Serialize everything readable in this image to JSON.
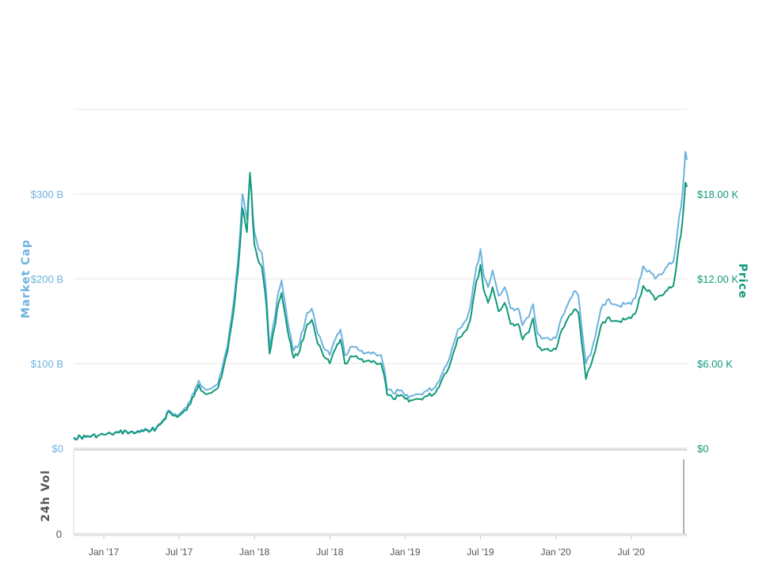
{
  "chart_data": {
    "type": "line",
    "y_left": {
      "label": "Market Cap",
      "ticks": [
        "$0",
        "$100 B",
        "$200 B",
        "$300 B"
      ],
      "tick_values": [
        0,
        100,
        200,
        300
      ],
      "unit": "B USD",
      "ylim": [
        0,
        400
      ]
    },
    "y_right": {
      "label": "Price",
      "ticks": [
        "$0",
        "$6.00 K",
        "$12.00 K",
        "$18.00 K"
      ],
      "tick_values": [
        0,
        6000,
        12000,
        18000
      ],
      "ylim": [
        0,
        24000
      ]
    },
    "volume_panel": {
      "label": "24h Vol",
      "ticks": [
        "0"
      ]
    },
    "x_ticks": [
      {
        "label": "Jan '17",
        "t": 2017.0
      },
      {
        "label": "Jul '17",
        "t": 2017.5
      },
      {
        "label": "Jan '18",
        "t": 2018.0
      },
      {
        "label": "Jul '18",
        "t": 2018.5
      },
      {
        "label": "Jan '19",
        "t": 2019.0
      },
      {
        "label": "Jul '19",
        "t": 2019.5
      },
      {
        "label": "Jan '20",
        "t": 2020.0
      },
      {
        "label": "Jul '20",
        "t": 2020.5
      }
    ],
    "xlim": [
      2016.8,
      2020.87
    ],
    "grid": true,
    "colors": {
      "market_cap": "#6db3df",
      "price": "#11997a",
      "grid": "#e6e6e6"
    },
    "series": [
      {
        "name": "Market Cap",
        "axis": "left",
        "points": [
          [
            2016.8,
            12
          ],
          [
            2016.88,
            13
          ],
          [
            2016.96,
            15
          ],
          [
            2017.0,
            16
          ],
          [
            2017.05,
            17
          ],
          [
            2017.1,
            19
          ],
          [
            2017.15,
            20
          ],
          [
            2017.2,
            18
          ],
          [
            2017.25,
            22
          ],
          [
            2017.3,
            20
          ],
          [
            2017.35,
            25
          ],
          [
            2017.4,
            35
          ],
          [
            2017.43,
            45
          ],
          [
            2017.46,
            40
          ],
          [
            2017.5,
            40
          ],
          [
            2017.55,
            48
          ],
          [
            2017.6,
            66
          ],
          [
            2017.63,
            80
          ],
          [
            2017.66,
            72
          ],
          [
            2017.7,
            70
          ],
          [
            2017.75,
            75
          ],
          [
            2017.78,
            90
          ],
          [
            2017.82,
            120
          ],
          [
            2017.86,
            170
          ],
          [
            2017.89,
            220
          ],
          [
            2017.92,
            300
          ],
          [
            2017.95,
            270
          ],
          [
            2017.97,
            322
          ],
          [
            2018.0,
            255
          ],
          [
            2018.02,
            240
          ],
          [
            2018.05,
            230
          ],
          [
            2018.08,
            180
          ],
          [
            2018.1,
            120
          ],
          [
            2018.13,
            150
          ],
          [
            2018.16,
            185
          ],
          [
            2018.18,
            198
          ],
          [
            2018.2,
            175
          ],
          [
            2018.23,
            140
          ],
          [
            2018.26,
            115
          ],
          [
            2018.3,
            125
          ],
          [
            2018.35,
            160
          ],
          [
            2018.38,
            165
          ],
          [
            2018.42,
            135
          ],
          [
            2018.46,
            118
          ],
          [
            2018.5,
            110
          ],
          [
            2018.54,
            130
          ],
          [
            2018.57,
            140
          ],
          [
            2018.6,
            110
          ],
          [
            2018.65,
            120
          ],
          [
            2018.7,
            115
          ],
          [
            2018.75,
            113
          ],
          [
            2018.8,
            112
          ],
          [
            2018.84,
            110
          ],
          [
            2018.86,
            95
          ],
          [
            2018.88,
            70
          ],
          [
            2018.92,
            65
          ],
          [
            2018.96,
            68
          ],
          [
            2019.0,
            62
          ],
          [
            2019.05,
            62
          ],
          [
            2019.1,
            64
          ],
          [
            2019.15,
            68
          ],
          [
            2019.2,
            72
          ],
          [
            2019.25,
            90
          ],
          [
            2019.3,
            110
          ],
          [
            2019.35,
            140
          ],
          [
            2019.4,
            150
          ],
          [
            2019.43,
            165
          ],
          [
            2019.46,
            200
          ],
          [
            2019.5,
            235
          ],
          [
            2019.52,
            205
          ],
          [
            2019.55,
            190
          ],
          [
            2019.58,
            210
          ],
          [
            2019.62,
            180
          ],
          [
            2019.66,
            190
          ],
          [
            2019.7,
            165
          ],
          [
            2019.75,
            165
          ],
          [
            2019.78,
            145
          ],
          [
            2019.82,
            155
          ],
          [
            2019.85,
            170
          ],
          [
            2019.88,
            135
          ],
          [
            2019.92,
            130
          ],
          [
            2019.96,
            128
          ],
          [
            2020.0,
            130
          ],
          [
            2020.04,
            155
          ],
          [
            2020.08,
            170
          ],
          [
            2020.12,
            185
          ],
          [
            2020.15,
            180
          ],
          [
            2020.18,
            130
          ],
          [
            2020.2,
            100
          ],
          [
            2020.23,
            110
          ],
          [
            2020.26,
            130
          ],
          [
            2020.3,
            165
          ],
          [
            2020.34,
            175
          ],
          [
            2020.38,
            170
          ],
          [
            2020.42,
            168
          ],
          [
            2020.46,
            170
          ],
          [
            2020.5,
            170
          ],
          [
            2020.54,
            185
          ],
          [
            2020.58,
            215
          ],
          [
            2020.62,
            210
          ],
          [
            2020.66,
            200
          ],
          [
            2020.7,
            205
          ],
          [
            2020.74,
            215
          ],
          [
            2020.78,
            220
          ],
          [
            2020.81,
            260
          ],
          [
            2020.84,
            300
          ],
          [
            2020.86,
            350
          ],
          [
            2020.87,
            340
          ]
        ]
      },
      {
        "name": "Price",
        "axis": "right",
        "points": [
          [
            2016.8,
            770
          ],
          [
            2016.88,
            820
          ],
          [
            2016.96,
            900
          ],
          [
            2017.0,
            960
          ],
          [
            2017.05,
            1000
          ],
          [
            2017.1,
            1100
          ],
          [
            2017.15,
            1180
          ],
          [
            2017.2,
            1050
          ],
          [
            2017.25,
            1250
          ],
          [
            2017.3,
            1150
          ],
          [
            2017.35,
            1450
          ],
          [
            2017.4,
            2000
          ],
          [
            2017.43,
            2600
          ],
          [
            2017.46,
            2300
          ],
          [
            2017.5,
            2300
          ],
          [
            2017.55,
            2700
          ],
          [
            2017.6,
            3700
          ],
          [
            2017.63,
            4500
          ],
          [
            2017.66,
            4000
          ],
          [
            2017.7,
            3900
          ],
          [
            2017.75,
            4200
          ],
          [
            2017.78,
            5000
          ],
          [
            2017.82,
            6800
          ],
          [
            2017.86,
            9600
          ],
          [
            2017.89,
            12500
          ],
          [
            2017.92,
            17000
          ],
          [
            2017.95,
            15300
          ],
          [
            2017.97,
            19500
          ],
          [
            2018.0,
            14400
          ],
          [
            2018.02,
            13500
          ],
          [
            2018.05,
            12800
          ],
          [
            2018.08,
            10000
          ],
          [
            2018.1,
            6700
          ],
          [
            2018.13,
            8400
          ],
          [
            2018.16,
            10300
          ],
          [
            2018.18,
            11000
          ],
          [
            2018.2,
            9700
          ],
          [
            2018.23,
            7800
          ],
          [
            2018.26,
            6400
          ],
          [
            2018.3,
            6900
          ],
          [
            2018.35,
            8800
          ],
          [
            2018.38,
            9100
          ],
          [
            2018.42,
            7400
          ],
          [
            2018.46,
            6500
          ],
          [
            2018.5,
            6000
          ],
          [
            2018.54,
            7100
          ],
          [
            2018.57,
            7700
          ],
          [
            2018.6,
            6000
          ],
          [
            2018.65,
            6500
          ],
          [
            2018.7,
            6300
          ],
          [
            2018.75,
            6200
          ],
          [
            2018.8,
            6100
          ],
          [
            2018.84,
            6000
          ],
          [
            2018.86,
            5200
          ],
          [
            2018.88,
            3800
          ],
          [
            2018.92,
            3500
          ],
          [
            2018.96,
            3700
          ],
          [
            2019.0,
            3500
          ],
          [
            2019.05,
            3400
          ],
          [
            2019.1,
            3500
          ],
          [
            2019.15,
            3700
          ],
          [
            2019.2,
            3900
          ],
          [
            2019.25,
            5000
          ],
          [
            2019.3,
            6000
          ],
          [
            2019.35,
            7800
          ],
          [
            2019.4,
            8300
          ],
          [
            2019.43,
            9000
          ],
          [
            2019.46,
            11000
          ],
          [
            2019.5,
            13000
          ],
          [
            2019.52,
            11300
          ],
          [
            2019.55,
            10300
          ],
          [
            2019.58,
            11400
          ],
          [
            2019.62,
            9700
          ],
          [
            2019.66,
            10300
          ],
          [
            2019.7,
            8800
          ],
          [
            2019.75,
            8800
          ],
          [
            2019.78,
            7700
          ],
          [
            2019.82,
            8200
          ],
          [
            2019.85,
            9200
          ],
          [
            2019.88,
            7200
          ],
          [
            2019.92,
            7000
          ],
          [
            2019.96,
            6900
          ],
          [
            2020.0,
            7000
          ],
          [
            2020.04,
            8400
          ],
          [
            2020.08,
            9200
          ],
          [
            2020.12,
            9800
          ],
          [
            2020.15,
            9600
          ],
          [
            2020.18,
            6800
          ],
          [
            2020.2,
            4900
          ],
          [
            2020.23,
            5800
          ],
          [
            2020.26,
            6800
          ],
          [
            2020.3,
            8700
          ],
          [
            2020.34,
            9200
          ],
          [
            2020.38,
            9000
          ],
          [
            2020.42,
            9000
          ],
          [
            2020.46,
            9100
          ],
          [
            2020.5,
            9200
          ],
          [
            2020.54,
            9900
          ],
          [
            2020.58,
            11500
          ],
          [
            2020.62,
            11200
          ],
          [
            2020.66,
            10500
          ],
          [
            2020.7,
            10800
          ],
          [
            2020.74,
            11200
          ],
          [
            2020.78,
            11500
          ],
          [
            2020.81,
            13800
          ],
          [
            2020.84,
            16000
          ],
          [
            2020.86,
            18800
          ],
          [
            2020.87,
            18500
          ]
        ]
      }
    ]
  }
}
